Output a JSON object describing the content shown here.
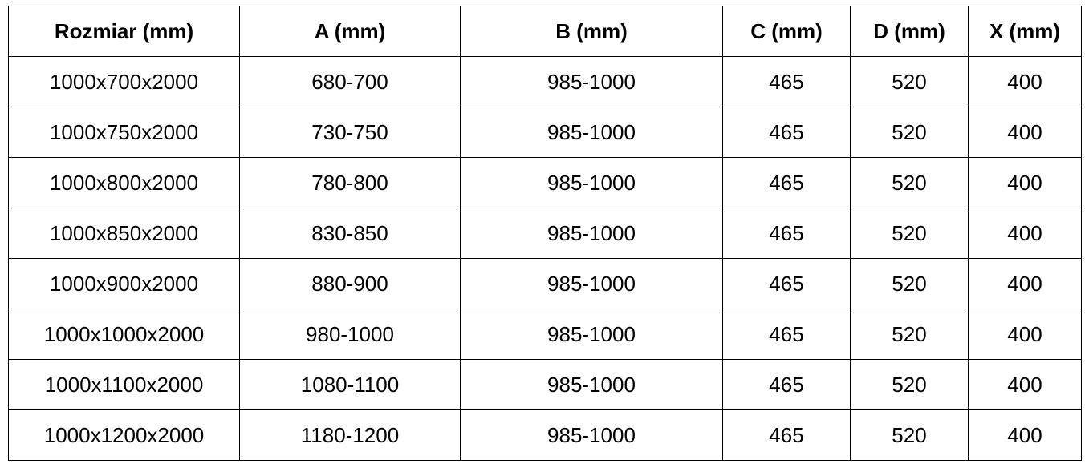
{
  "headers": [
    "Rozmiar (mm)",
    "A (mm)",
    "B (mm)",
    "C (mm)",
    "D (mm)",
    "X (mm)"
  ],
  "rows": [
    [
      "1000x700x2000",
      "680-700",
      "985-1000",
      "465",
      "520",
      "400"
    ],
    [
      "1000x750x2000",
      "730-750",
      "985-1000",
      "465",
      "520",
      "400"
    ],
    [
      "1000x800x2000",
      "780-800",
      "985-1000",
      "465",
      "520",
      "400"
    ],
    [
      "1000x850x2000",
      "830-850",
      "985-1000",
      "465",
      "520",
      "400"
    ],
    [
      "1000x900x2000",
      "880-900",
      "985-1000",
      "465",
      "520",
      "400"
    ],
    [
      "1000x1000x2000",
      "980-1000",
      "985-1000",
      "465",
      "520",
      "400"
    ],
    [
      "1000x1100x2000",
      "1080-1100",
      "985-1000",
      "465",
      "520",
      "400"
    ],
    [
      "1000x1200x2000",
      "1180-1200",
      "985-1000",
      "465",
      "520",
      "400"
    ]
  ]
}
